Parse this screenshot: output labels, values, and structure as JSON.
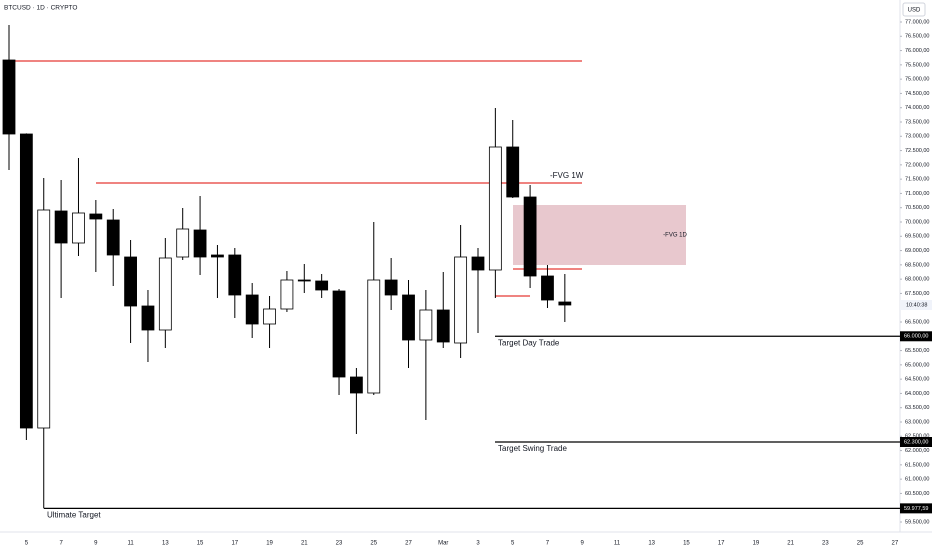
{
  "chart_data": {
    "type": "candlestick",
    "title": "BTCUSD · 1D · CRYPTO",
    "currency": "USD",
    "countdown": "10:40:38",
    "categories": [
      null,
      "5",
      null,
      "7",
      null,
      "9",
      null,
      "11",
      null,
      "13",
      null,
      "15",
      null,
      "17",
      null,
      "19",
      null,
      "21",
      null,
      "23",
      null,
      "25",
      null,
      "27",
      null,
      "Mar",
      null,
      "3",
      null,
      "5",
      null,
      "7",
      null,
      "9",
      null,
      "11",
      null,
      "13",
      null,
      "15",
      null,
      "17",
      null,
      "19",
      null,
      "21",
      null,
      "23",
      null,
      "25",
      null,
      "27"
    ],
    "open": [
      75670,
      73080,
      62790,
      70385,
      69265,
      70280,
      70070,
      68775,
      67060,
      66220,
      68775,
      69720,
      68845,
      68845,
      67445,
      66430,
      66955,
      67970,
      67935,
      67585,
      64575,
      64015,
      67970,
      67445,
      65870,
      66920,
      65765,
      68775,
      68320,
      72625,
      70875,
      68110,
      67200,
      null,
      null,
      null,
      null,
      null,
      null,
      null,
      null,
      null,
      null,
      null,
      null,
      null,
      null,
      null,
      null,
      null,
      null,
      null
    ],
    "high": [
      76895,
      73100,
      71540,
      71470,
      72240,
      70770,
      70455,
      69370,
      67620,
      69440,
      70490,
      70910,
      69195,
      69090,
      67865,
      67410,
      68285,
      68530,
      68180,
      67655,
      64890,
      70000,
      68740,
      67970,
      67620,
      68250,
      69895,
      69090,
      73990,
      73570,
      71295,
      68495,
      68180,
      null,
      null,
      null,
      null,
      null,
      null,
      null,
      null,
      null,
      null,
      null,
      null,
      null,
      null,
      null,
      null,
      null,
      null,
      null
    ],
    "low": [
      71820,
      62370,
      59977.59,
      67340,
      68810,
      68250,
      67760,
      65765,
      65100,
      65590,
      68670,
      68145,
      67340,
      66640,
      65940,
      65590,
      66850,
      67515,
      67340,
      63945,
      62580,
      63945,
      66920,
      64890,
      63070,
      65590,
      65240,
      66115,
      67340,
      70840,
      67690,
      66990,
      66500,
      null,
      null,
      null,
      null,
      null,
      null,
      null,
      null,
      null,
      null,
      null,
      null,
      null,
      null,
      null,
      null,
      null,
      null,
      null
    ],
    "close": [
      73080,
      62790,
      70420,
      69265,
      70315,
      70105,
      68845,
      67060,
      66220,
      68740,
      69755,
      68775,
      68775,
      67445,
      66430,
      66955,
      67970,
      67935,
      67620,
      64575,
      64015,
      67970,
      67445,
      65870,
      66920,
      65800,
      68775,
      68320,
      72625,
      70875,
      68110,
      67270,
      67095,
      null,
      null,
      null,
      null,
      null,
      null,
      null,
      null,
      null,
      null,
      null,
      null,
      null,
      null,
      null,
      null,
      null,
      null,
      null
    ],
    "up_color": "#ffffff",
    "down_color": "#000000",
    "ylim": [
      59500,
      77000
    ],
    "yticks": [
      {
        "value": 59500,
        "label": "59.500,00"
      },
      {
        "value": 60000,
        "label": "60.000,00"
      },
      {
        "value": 60500,
        "label": "60.500,00"
      },
      {
        "value": 61000,
        "label": "61.000,00"
      },
      {
        "value": 61500,
        "label": "61.500,00"
      },
      {
        "value": 62000,
        "label": "62.000,00"
      },
      {
        "value": 62500,
        "label": "62.500,00"
      },
      {
        "value": 63000,
        "label": "63.000,00"
      },
      {
        "value": 63500,
        "label": "63.500,00"
      },
      {
        "value": 64000,
        "label": "64.000,00"
      },
      {
        "value": 64500,
        "label": "64.500,00"
      },
      {
        "value": 65000,
        "label": "65.000,00"
      },
      {
        "value": 65500,
        "label": "65.500,00"
      },
      {
        "value": 66000,
        "label": "66.000,00"
      },
      {
        "value": 66500,
        "label": "66.500,00"
      },
      {
        "value": 67000,
        "label": "67.000,00"
      },
      {
        "value": 67500,
        "label": "67.500,00"
      },
      {
        "value": 68000,
        "label": "68.000,00"
      },
      {
        "value": 68500,
        "label": "68.500,00"
      },
      {
        "value": 69000,
        "label": "69.000,00"
      },
      {
        "value": 69500,
        "label": "69.500,00"
      },
      {
        "value": 70000,
        "label": "70.000,00"
      },
      {
        "value": 70500,
        "label": "70.500,00"
      },
      {
        "value": 71000,
        "label": "71.000,00"
      },
      {
        "value": 71500,
        "label": "71.500,00"
      },
      {
        "value": 72000,
        "label": "72.000,00"
      },
      {
        "value": 72500,
        "label": "72.500,00"
      },
      {
        "value": 73000,
        "label": "73.000,00"
      },
      {
        "value": 73500,
        "label": "73.500,00"
      },
      {
        "value": 74000,
        "label": "74.000,00"
      },
      {
        "value": 74500,
        "label": "74.500,00"
      },
      {
        "value": 75000,
        "label": "75.000,00"
      },
      {
        "value": 75500,
        "label": "75.500,00"
      },
      {
        "value": 76000,
        "label": "76.000,00"
      },
      {
        "value": 76500,
        "label": "76.500,00"
      },
      {
        "value": 77000,
        "label": "77.000,00"
      }
    ],
    "levels": [
      {
        "value": 75635,
        "color": "#e53935"
      },
      {
        "value": 71365,
        "color": "#e53935",
        "label": "-FVG 1W"
      },
      {
        "value": 67410,
        "color": "#e53935"
      },
      {
        "value": 68355,
        "color": "#e53935"
      },
      {
        "value": 66000,
        "color": "#000000",
        "label": "Target Day Trade",
        "tag": "66.000,00"
      },
      {
        "value": 62300,
        "color": "#000000",
        "label": "Target Swing Trade",
        "tag": "62.300,00"
      },
      {
        "value": 59977.59,
        "color": "#000000",
        "label": "Ultimate Target",
        "tag": "59.977,59"
      }
    ],
    "zone": {
      "label": "-FVG 1D",
      "top": 70595,
      "bottom": 68495,
      "color": "#d9a3ad"
    }
  }
}
